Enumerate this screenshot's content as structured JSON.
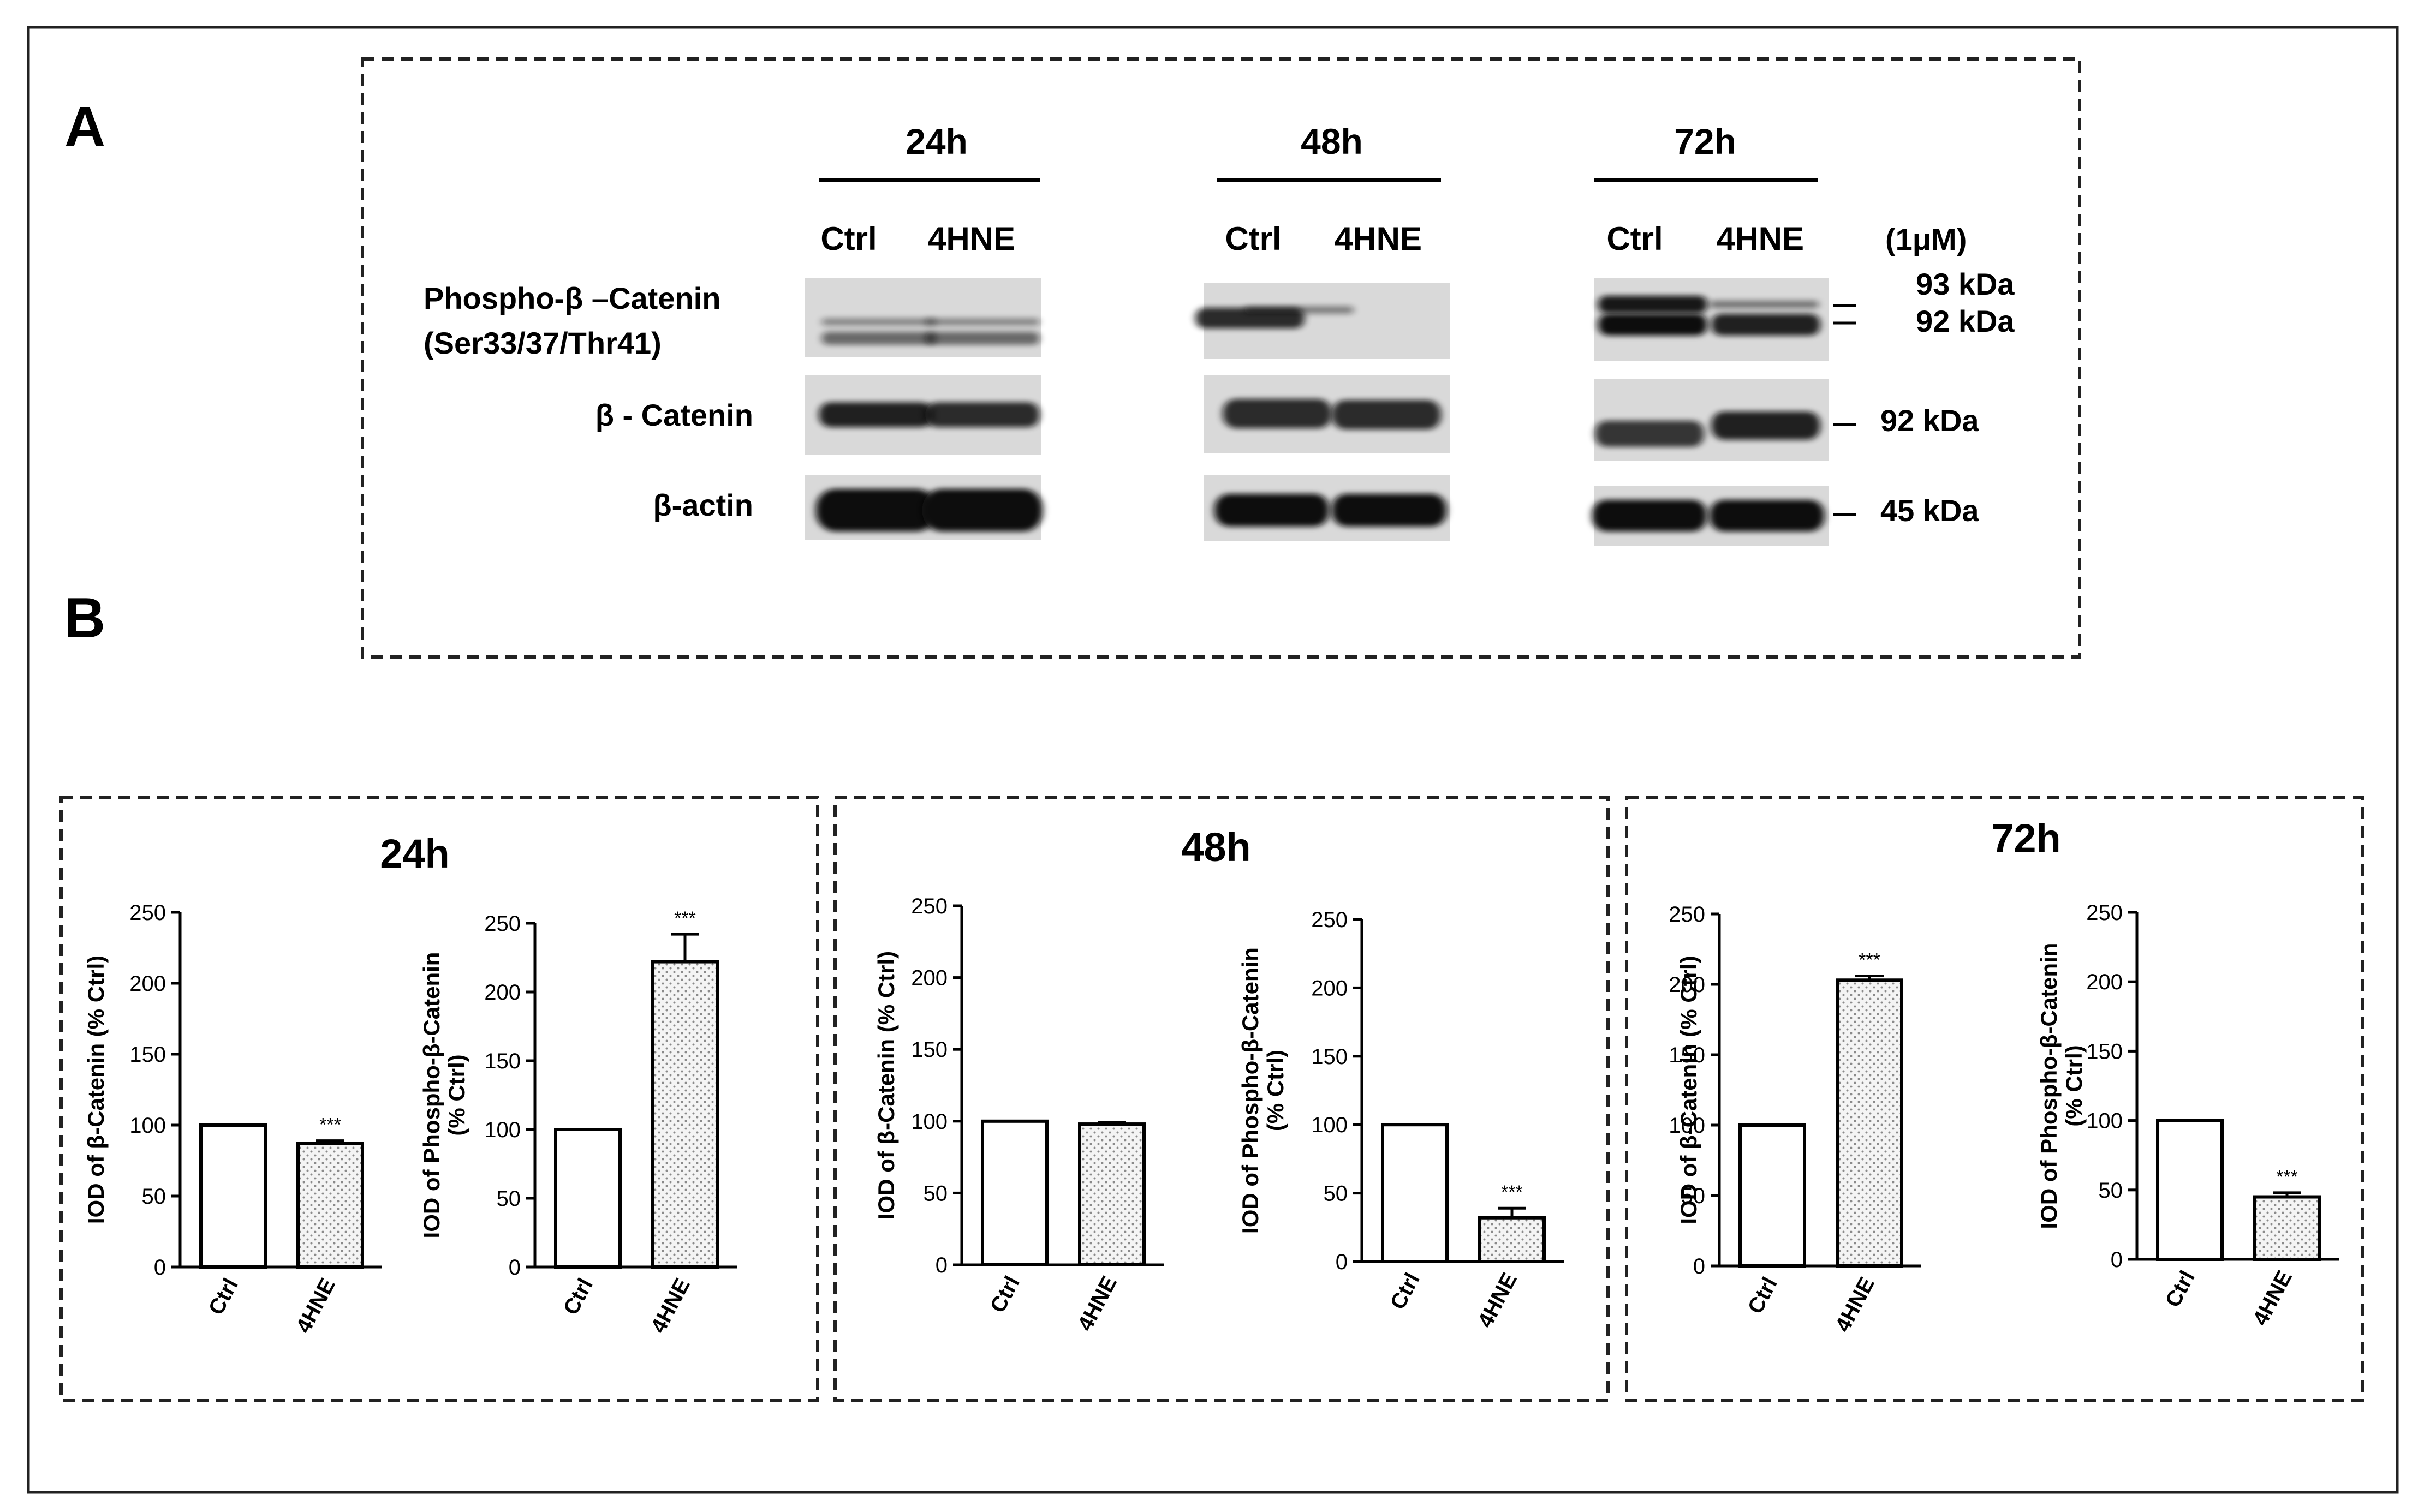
{
  "panel_labels": [
    "A",
    "B"
  ],
  "western_blot": {
    "timepoints": [
      "24h",
      "48h",
      "72h"
    ],
    "lanes": [
      "Ctrl",
      "4HNE"
    ],
    "concentration": "(1μM)",
    "rows": [
      {
        "label": [
          "Phospho-β –Catenin",
          "(Ser33/37/Thr41)"
        ]
      },
      {
        "label": [
          "β - Catenin"
        ]
      },
      {
        "label": [
          "β-actin"
        ]
      }
    ],
    "kda_markers": [
      "93 kDa",
      "92 kDa",
      "92 kDa",
      "45 kDa"
    ]
  },
  "chart_data": [
    {
      "type": "bar",
      "panel": "24h",
      "categories": [
        "Ctrl",
        "4HNE"
      ],
      "values": [
        100,
        87
      ],
      "errors": [
        0,
        2
      ],
      "significance": [
        "",
        "***"
      ],
      "ylabel": "IOD of β-Catenin (% Ctrl)",
      "ylim": [
        0,
        250
      ],
      "yticks": [
        0,
        50,
        100,
        150,
        200,
        250
      ]
    },
    {
      "type": "bar",
      "panel": "24h",
      "categories": [
        "Ctrl",
        "4HNE"
      ],
      "values": [
        100,
        222
      ],
      "errors": [
        0,
        20
      ],
      "significance": [
        "",
        "***"
      ],
      "ylabel": "IOD of Phospho-β-Catenin (% Ctrl)",
      "ylim": [
        0,
        250
      ],
      "yticks": [
        0,
        50,
        100,
        150,
        200,
        250
      ]
    },
    {
      "type": "bar",
      "panel": "48h",
      "categories": [
        "Ctrl",
        "4HNE"
      ],
      "values": [
        100,
        98
      ],
      "errors": [
        0,
        1
      ],
      "significance": [
        "",
        ""
      ],
      "ylabel": "IOD of β-Catenin (% Ctrl)",
      "ylim": [
        0,
        250
      ],
      "yticks": [
        0,
        50,
        100,
        150,
        200,
        250
      ]
    },
    {
      "type": "bar",
      "panel": "48h",
      "categories": [
        "Ctrl",
        "4HNE"
      ],
      "values": [
        100,
        32
      ],
      "errors": [
        0,
        7
      ],
      "significance": [
        "",
        "***"
      ],
      "ylabel": "IOD of Phospho-β-Catenin (% Ctrl)",
      "ylim": [
        0,
        250
      ],
      "yticks": [
        0,
        50,
        100,
        150,
        200,
        250
      ]
    },
    {
      "type": "bar",
      "panel": "72h",
      "categories": [
        "Ctrl",
        "4HNE"
      ],
      "values": [
        100,
        203
      ],
      "errors": [
        0,
        3
      ],
      "significance": [
        "",
        "***"
      ],
      "ylabel": "IOD of β-Catenin (% Ctrl)",
      "ylim": [
        0,
        250
      ],
      "yticks": [
        0,
        50,
        100,
        150,
        200,
        250
      ]
    },
    {
      "type": "bar",
      "panel": "72h",
      "categories": [
        "Ctrl",
        "4HNE"
      ],
      "values": [
        100,
        45
      ],
      "errors": [
        0,
        3
      ],
      "significance": [
        "",
        "***"
      ],
      "ylabel": "IOD of Phospho-β-Catenin (% Ctrl)",
      "ylim": [
        0,
        250
      ],
      "yticks": [
        0,
        50,
        100,
        150,
        200,
        250
      ]
    }
  ]
}
